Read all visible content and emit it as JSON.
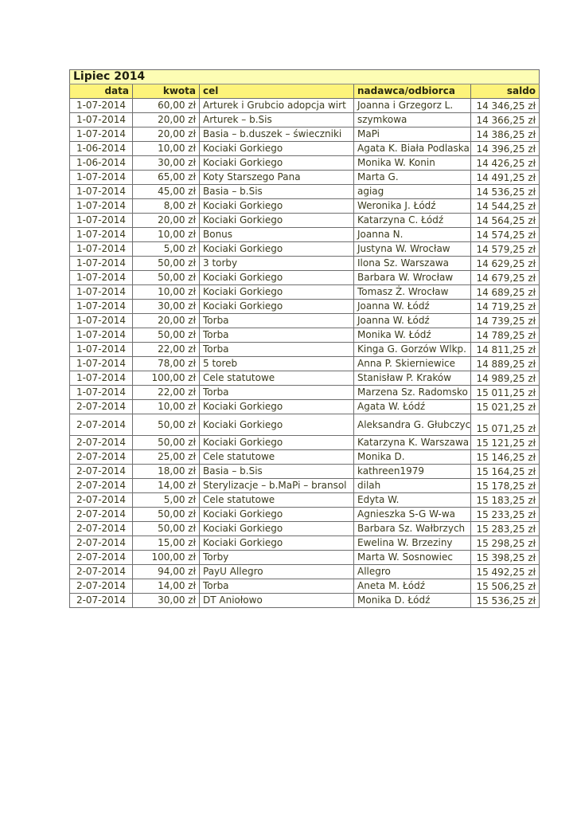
{
  "title": "Lipiec 2014",
  "columns": [
    "data",
    "kwota",
    "cel",
    "nadawca/odbiorca",
    "saldo"
  ],
  "rows": [
    [
      "1-07-2014",
      "60,00 zł",
      "Arturek i Grubcio adopcja wirt",
      "Joanna i Grzegorz L.",
      "14 346,25 zł"
    ],
    [
      "1-07-2014",
      "20,00 zł",
      "Arturek – b.Sis",
      "szymkowa",
      "14 366,25 zł"
    ],
    [
      "1-07-2014",
      "20,00 zł",
      "Basia – b.duszek – świeczniki",
      "MaPi",
      "14 386,25 zł"
    ],
    [
      "1-06-2014",
      "10,00 zł",
      "Kociaki Gorkiego",
      "Agata K. Biała Podlaska",
      "14 396,25 zł"
    ],
    [
      "1-06-2014",
      "30,00 zł",
      "Kociaki Gorkiego",
      "Monika W. Konin",
      "14 426,25 zł"
    ],
    [
      "1-07-2014",
      "65,00 zł",
      "Koty Starszego Pana",
      "Marta G.",
      "14 491,25 zł"
    ],
    [
      "1-07-2014",
      "45,00 zł",
      "Basia – b.Sis",
      "agiag",
      "14 536,25 zł"
    ],
    [
      "1-07-2014",
      "8,00 zł",
      "Kociaki Gorkiego",
      "Weronika J. Łódź",
      "14 544,25 zł"
    ],
    [
      "1-07-2014",
      "20,00 zł",
      "Kociaki Gorkiego",
      "Katarzyna C. Łódź",
      "14 564,25 zł"
    ],
    [
      "1-07-2014",
      "10,00 zł",
      "Bonus",
      "Joanna N.",
      "14 574,25 zł"
    ],
    [
      "1-07-2014",
      "5,00 zł",
      "Kociaki Gorkiego",
      "Justyna W. Wrocław",
      "14 579,25 zł"
    ],
    [
      "1-07-2014",
      "50,00 zł",
      "3 torby",
      "Ilona Sz. Warszawa",
      "14 629,25 zł"
    ],
    [
      "1-07-2014",
      "50,00 zł",
      "Kociaki Gorkiego",
      "Barbara W. Wrocław",
      "14 679,25 zł"
    ],
    [
      "1-07-2014",
      "10,00 zł",
      "Kociaki Gorkiego",
      "Tomasz Ż. Wrocław",
      "14 689,25 zł"
    ],
    [
      "1-07-2014",
      "30,00 zł",
      "Kociaki Gorkiego",
      "Joanna W. Łódź",
      "14 719,25 zł"
    ],
    [
      "1-07-2014",
      "20,00 zł",
      "Torba",
      "Joanna W. Łódź",
      "14 739,25 zł"
    ],
    [
      "1-07-2014",
      "50,00 zł",
      "Torba",
      "Monika W. Łódź",
      "14 789,25 zł"
    ],
    [
      "1-07-2014",
      "22,00 zł",
      "Torba",
      "Kinga G. Gorzów Wlkp.",
      "14 811,25 zł"
    ],
    [
      "1-07-2014",
      "78,00 zł",
      "5 toreb",
      "Anna P. Skierniewice",
      "14 889,25 zł"
    ],
    [
      "1-07-2014",
      "100,00 zł",
      "Cele statutowe",
      "Stanisław P. Kraków",
      "14 989,25 zł"
    ],
    [
      "1-07-2014",
      "22,00 zł",
      "Torba",
      "Marzena Sz. Radomsko",
      "15 011,25 zł"
    ],
    [
      "2-07-2014",
      "10,00 zł",
      "Kociaki Gorkiego",
      "Agata W. Łódź",
      "15 021,25 zł"
    ],
    [
      "2-07-2014",
      "50,00 zł",
      "Kociaki Gorkiego",
      "Aleksandra G. Głubczyce",
      "15 071,25 zł"
    ],
    [
      "2-07-2014",
      "50,00 zł",
      "Kociaki Gorkiego",
      "Katarzyna K. Warszawa",
      "15 121,25 zł"
    ],
    [
      "2-07-2014",
      "25,00 zł",
      "Cele statutowe",
      "Monika D.",
      "15 146,25 zł"
    ],
    [
      "2-07-2014",
      "18,00 zł",
      "Basia – b.Sis",
      "kathreen1979",
      "15 164,25 zł"
    ],
    [
      "2-07-2014",
      "14,00 zł",
      "Sterylizacje – b.MaPi – bransol",
      "dilah",
      "15 178,25 zł"
    ],
    [
      "2-07-2014",
      "5,00 zł",
      "Cele statutowe",
      "Edyta W.",
      "15 183,25 zł"
    ],
    [
      "2-07-2014",
      "50,00 zł",
      "Kociaki Gorkiego",
      "Agnieszka S-G W-wa",
      "15 233,25 zł"
    ],
    [
      "2-07-2014",
      "50,00 zł",
      "Kociaki Gorkiego",
      "Barbara Sz. Wałbrzych",
      "15 283,25 zł"
    ],
    [
      "2-07-2014",
      "15,00 zł",
      "Kociaki Gorkiego",
      "Ewelina W. Brzeziny",
      "15 298,25 zł"
    ],
    [
      "2-07-2014",
      "100,00 zł",
      "Torby",
      "Marta W. Sosnowiec",
      "15 398,25 zł"
    ],
    [
      "2-07-2014",
      "94,00 zł",
      "PayU Allegro",
      "Allegro",
      "15 492,25 zł"
    ],
    [
      "2-07-2014",
      "14,00 zł",
      "Torba",
      "Aneta M. Łódź",
      "15 506,25 zł"
    ],
    [
      "2-07-2014",
      "30,00 zł",
      "DT Aniołowo",
      "Monika D. Łódź",
      "15 536,25 zł"
    ]
  ]
}
